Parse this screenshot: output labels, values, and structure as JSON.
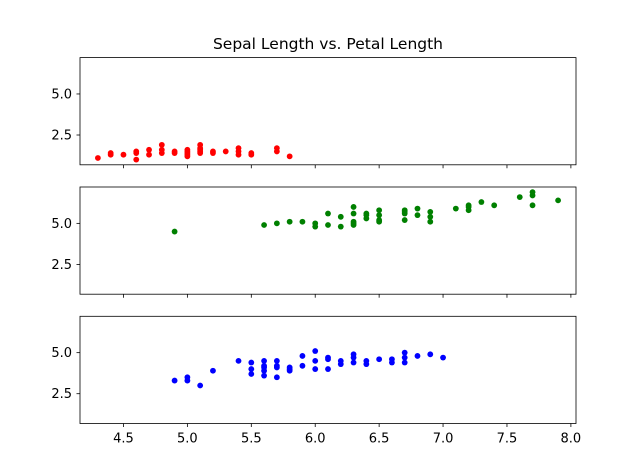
{
  "chart_data": {
    "type": "scatter",
    "title": "Sepal Length vs. Petal Length",
    "layout": "3 stacked subplots sharing x axis",
    "xlim": [
      4.16,
      8.04
    ],
    "ylim": [
      0.685,
      7.215
    ],
    "grid": false,
    "x_ticks": [
      "4.5",
      "5.0",
      "5.5",
      "6.0",
      "6.5",
      "7.0",
      "7.5",
      "8.0"
    ],
    "y_ticks": [
      "2.5",
      "5.0"
    ],
    "series": [
      {
        "color": "#ff0000",
        "points": [
          [
            4.3,
            1.1
          ],
          [
            4.4,
            1.3
          ],
          [
            4.4,
            1.4
          ],
          [
            4.5,
            1.3
          ],
          [
            4.6,
            1.0
          ],
          [
            4.6,
            1.4
          ],
          [
            4.6,
            1.5
          ],
          [
            4.7,
            1.3
          ],
          [
            4.7,
            1.6
          ],
          [
            4.8,
            1.4
          ],
          [
            4.8,
            1.6
          ],
          [
            4.8,
            1.9
          ],
          [
            4.9,
            1.4
          ],
          [
            4.9,
            1.5
          ],
          [
            5.0,
            1.2
          ],
          [
            5.0,
            1.3
          ],
          [
            5.0,
            1.4
          ],
          [
            5.0,
            1.5
          ],
          [
            5.0,
            1.6
          ],
          [
            5.1,
            1.4
          ],
          [
            5.1,
            1.5
          ],
          [
            5.1,
            1.6
          ],
          [
            5.1,
            1.7
          ],
          [
            5.1,
            1.9
          ],
          [
            5.2,
            1.4
          ],
          [
            5.2,
            1.5
          ],
          [
            5.3,
            1.5
          ],
          [
            5.4,
            1.3
          ],
          [
            5.4,
            1.5
          ],
          [
            5.4,
            1.7
          ],
          [
            5.5,
            1.3
          ],
          [
            5.5,
            1.4
          ],
          [
            5.7,
            1.5
          ],
          [
            5.7,
            1.7
          ],
          [
            5.8,
            1.2
          ]
        ]
      },
      {
        "color": "#008000",
        "points": [
          [
            4.9,
            4.5
          ],
          [
            5.6,
            4.9
          ],
          [
            5.7,
            5.0
          ],
          [
            5.8,
            5.1
          ],
          [
            5.9,
            5.1
          ],
          [
            6.0,
            4.8
          ],
          [
            6.0,
            5.0
          ],
          [
            6.1,
            4.9
          ],
          [
            6.1,
            5.6
          ],
          [
            6.2,
            4.8
          ],
          [
            6.2,
            5.4
          ],
          [
            6.3,
            4.9
          ],
          [
            6.3,
            5.0
          ],
          [
            6.3,
            5.1
          ],
          [
            6.3,
            5.6
          ],
          [
            6.3,
            6.0
          ],
          [
            6.4,
            5.3
          ],
          [
            6.4,
            5.5
          ],
          [
            6.4,
            5.6
          ],
          [
            6.5,
            5.1
          ],
          [
            6.5,
            5.2
          ],
          [
            6.5,
            5.5
          ],
          [
            6.5,
            5.8
          ],
          [
            6.7,
            5.2
          ],
          [
            6.7,
            5.6
          ],
          [
            6.7,
            5.7
          ],
          [
            6.7,
            5.8
          ],
          [
            6.8,
            5.5
          ],
          [
            6.8,
            5.9
          ],
          [
            6.9,
            5.1
          ],
          [
            6.9,
            5.4
          ],
          [
            6.9,
            5.7
          ],
          [
            7.1,
            5.9
          ],
          [
            7.2,
            5.8
          ],
          [
            7.2,
            6.0
          ],
          [
            7.2,
            6.1
          ],
          [
            7.3,
            6.3
          ],
          [
            7.4,
            6.1
          ],
          [
            7.6,
            6.6
          ],
          [
            7.7,
            6.1
          ],
          [
            7.7,
            6.7
          ],
          [
            7.7,
            6.9
          ],
          [
            7.9,
            6.4
          ]
        ]
      },
      {
        "color": "#0000ff",
        "points": [
          [
            4.9,
            3.3
          ],
          [
            5.0,
            3.3
          ],
          [
            5.0,
            3.5
          ],
          [
            5.1,
            3.0
          ],
          [
            5.2,
            3.9
          ],
          [
            5.4,
            4.5
          ],
          [
            5.5,
            3.7
          ],
          [
            5.5,
            4.0
          ],
          [
            5.5,
            4.4
          ],
          [
            5.6,
            3.6
          ],
          [
            5.6,
            3.9
          ],
          [
            5.6,
            4.1
          ],
          [
            5.6,
            4.2
          ],
          [
            5.6,
            4.5
          ],
          [
            5.7,
            3.5
          ],
          [
            5.7,
            4.1
          ],
          [
            5.7,
            4.2
          ],
          [
            5.7,
            4.5
          ],
          [
            5.8,
            3.9
          ],
          [
            5.8,
            4.0
          ],
          [
            5.8,
            4.1
          ],
          [
            5.9,
            4.2
          ],
          [
            5.9,
            4.8
          ],
          [
            6.0,
            4.0
          ],
          [
            6.0,
            4.5
          ],
          [
            6.0,
            5.1
          ],
          [
            6.1,
            4.0
          ],
          [
            6.1,
            4.6
          ],
          [
            6.1,
            4.7
          ],
          [
            6.2,
            4.3
          ],
          [
            6.2,
            4.5
          ],
          [
            6.3,
            4.4
          ],
          [
            6.3,
            4.7
          ],
          [
            6.3,
            4.9
          ],
          [
            6.4,
            4.3
          ],
          [
            6.4,
            4.5
          ],
          [
            6.5,
            4.6
          ],
          [
            6.6,
            4.4
          ],
          [
            6.6,
            4.6
          ],
          [
            6.7,
            4.4
          ],
          [
            6.7,
            4.7
          ],
          [
            6.7,
            5.0
          ],
          [
            6.8,
            4.8
          ],
          [
            6.9,
            4.9
          ],
          [
            7.0,
            4.7
          ]
        ]
      }
    ]
  }
}
